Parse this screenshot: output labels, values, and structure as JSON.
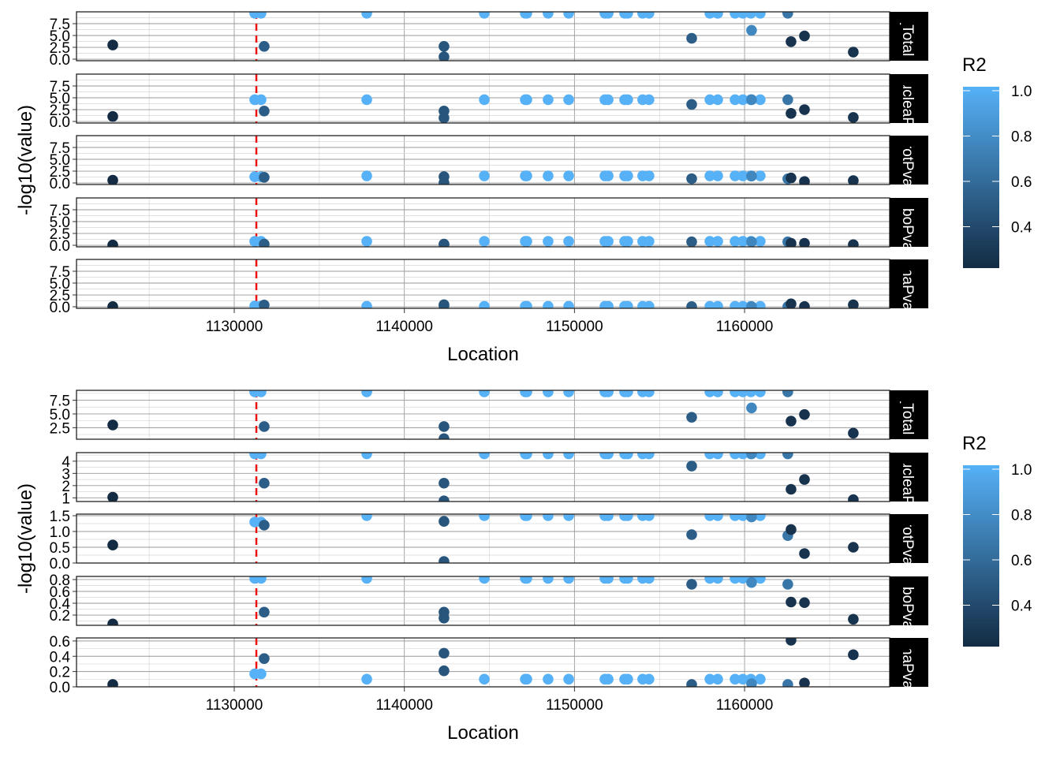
{
  "chart_data": [
    {
      "type": "scatter",
      "title": "",
      "xlabel": "Location",
      "ylabel": "-log10(value)",
      "xlim": [
        1120728,
        1168527
      ],
      "x_ticks": [
        1130000,
        1140000,
        1150000,
        1160000
      ],
      "x_tick_labels": [
        "1130000",
        "1140000",
        "1150000",
        "1160000"
      ],
      "vline": {
        "x": 1131300,
        "color": "#ee1111",
        "style": "dashed"
      },
      "grid": true,
      "scales": "fixed",
      "legend": {
        "title": "R2",
        "type": "colorbar",
        "placement": "right",
        "range": [
          0.2,
          1.0
        ],
        "ticks": [
          "1.0",
          "0.8",
          "0.6",
          "0.4"
        ],
        "low_color": "#132b43",
        "high_color": "#56b1f7"
      },
      "facets": [
        {
          "label": "_Total",
          "ylim": [
            -0.33,
            10.0
          ],
          "y_ticks": [
            "0.0",
            "2.5",
            "5.0",
            "7.5"
          ]
        },
        {
          "label": "NucleaP",
          "ylim": [
            -0.33,
            10.0
          ],
          "y_ticks": [
            "0.0",
            "2.5",
            "5.0",
            "7.5"
          ]
        },
        {
          "label": "ProtPva",
          "ylim": [
            -0.33,
            10.0
          ],
          "y_ticks": [
            "0.0",
            "2.5",
            "5.0",
            "7.5"
          ]
        },
        {
          "label": "RiboPva",
          "ylim": [
            -0.33,
            10.0
          ],
          "y_ticks": [
            "0.0",
            "2.5",
            "5.0",
            "7.5"
          ]
        },
        {
          "label": "RnaPva",
          "ylim": [
            -0.33,
            10.0
          ],
          "y_ticks": [
            "0.0",
            "2.5",
            "5.0",
            "7.5"
          ]
        }
      ]
    },
    {
      "type": "scatter",
      "title": "",
      "xlabel": "Location",
      "ylabel": "-log10(value)",
      "xlim": [
        1120728,
        1168527
      ],
      "x_ticks": [
        1130000,
        1140000,
        1150000,
        1160000
      ],
      "x_tick_labels": [
        "1130000",
        "1140000",
        "1150000",
        "1160000"
      ],
      "vline": {
        "x": 1131300,
        "color": "#ee1111",
        "style": "dashed"
      },
      "grid": true,
      "scales": "free_y",
      "legend": {
        "title": "R2",
        "type": "colorbar",
        "placement": "right",
        "range": [
          0.2,
          1.0
        ],
        "ticks": [
          "1.0",
          "0.8",
          "0.6",
          "0.4"
        ],
        "low_color": "#132b43",
        "high_color": "#56b1f7"
      },
      "facets": [
        {
          "label": "_Total",
          "ylim": [
            0.4,
            9.3
          ],
          "y_ticks": [
            "2.5",
            "5.0",
            "7.5"
          ]
        },
        {
          "label": "NucleaP",
          "ylim": [
            0.7,
            4.7
          ],
          "y_ticks": [
            "1",
            "2",
            "3",
            "4"
          ]
        },
        {
          "label": "ProtPva",
          "ylim": [
            0.0,
            1.55
          ],
          "y_ticks": [
            "0.0",
            "0.5",
            "1.0",
            "1.5"
          ]
        },
        {
          "label": "RiboPva",
          "ylim": [
            0.027,
            0.853
          ],
          "y_ticks": [
            "0.2",
            "0.4",
            "0.6",
            "0.8"
          ]
        },
        {
          "label": "RnaPva",
          "ylim": [
            0.0,
            0.64
          ],
          "y_ticks": [
            "0.0",
            "0.2",
            "0.4",
            "0.6"
          ]
        }
      ]
    }
  ],
  "points": {
    "columns": [
      "location",
      "R2",
      "_Total",
      "NucleaP",
      "ProtPva",
      "RiboPva",
      "RnaPva"
    ],
    "rows": [
      [
        1122860,
        0.2,
        3.0,
        1.05,
        0.57,
        0.05,
        0.03
      ],
      [
        1131205,
        1.0,
        9.7,
        4.6,
        1.3,
        0.82,
        0.17
      ],
      [
        1131576,
        1.0,
        9.7,
        4.6,
        1.3,
        0.82,
        0.17
      ],
      [
        1131760,
        0.5,
        2.7,
        2.2,
        1.2,
        0.25,
        0.37
      ],
      [
        1142330,
        0.45,
        2.7,
        2.2,
        1.32,
        0.25,
        0.44
      ],
      [
        1142330,
        0.45,
        0.5,
        0.75,
        0.05,
        0.15,
        0.21
      ],
      [
        1137790,
        1.0,
        9.7,
        4.6,
        1.5,
        0.82,
        0.1
      ],
      [
        1144700,
        1.0,
        9.7,
        4.6,
        1.5,
        0.82,
        0.1
      ],
      [
        1147110,
        1.0,
        9.7,
        4.6,
        1.5,
        0.82,
        0.1
      ],
      [
        1147200,
        1.0,
        9.7,
        4.6,
        1.5,
        0.82,
        0.1
      ],
      [
        1148450,
        1.0,
        9.7,
        4.6,
        1.5,
        0.82,
        0.1
      ],
      [
        1149660,
        1.0,
        9.7,
        4.6,
        1.5,
        0.82,
        0.1
      ],
      [
        1151790,
        1.0,
        9.7,
        4.6,
        1.5,
        0.82,
        0.1
      ],
      [
        1151980,
        1.0,
        9.7,
        4.6,
        1.5,
        0.82,
        0.1
      ],
      [
        1152950,
        1.0,
        9.7,
        4.6,
        1.5,
        0.82,
        0.1
      ],
      [
        1153130,
        1.0,
        9.7,
        4.6,
        1.5,
        0.82,
        0.1
      ],
      [
        1154010,
        1.0,
        9.7,
        4.6,
        1.5,
        0.82,
        0.1
      ],
      [
        1154380,
        1.0,
        9.7,
        4.6,
        1.5,
        0.82,
        0.1
      ],
      [
        1156890,
        0.5,
        4.4,
        3.6,
        0.9,
        0.72,
        0.03
      ],
      [
        1157960,
        1.0,
        9.7,
        4.6,
        1.5,
        0.82,
        0.1
      ],
      [
        1158420,
        1.0,
        9.7,
        4.6,
        1.5,
        0.82,
        0.1
      ],
      [
        1159440,
        1.0,
        9.7,
        4.6,
        1.5,
        0.82,
        0.1
      ],
      [
        1159900,
        1.0,
        9.7,
        4.6,
        1.5,
        0.82,
        0.1
      ],
      [
        1160370,
        1.0,
        9.7,
        4.6,
        1.5,
        0.82,
        0.1
      ],
      [
        1160410,
        0.75,
        6.1,
        4.6,
        1.46,
        0.75,
        0.04
      ],
      [
        1160920,
        1.0,
        9.7,
        4.6,
        1.5,
        0.82,
        0.1
      ],
      [
        1162540,
        0.65,
        9.7,
        4.6,
        0.87,
        0.72,
        0.03
      ],
      [
        1162730,
        0.25,
        3.7,
        1.7,
        1.06,
        0.42,
        0.61
      ],
      [
        1163520,
        0.25,
        4.9,
        2.5,
        0.3,
        0.41,
        0.05
      ],
      [
        1166390,
        0.25,
        1.5,
        0.85,
        0.5,
        0.13,
        0.42
      ]
    ]
  }
}
